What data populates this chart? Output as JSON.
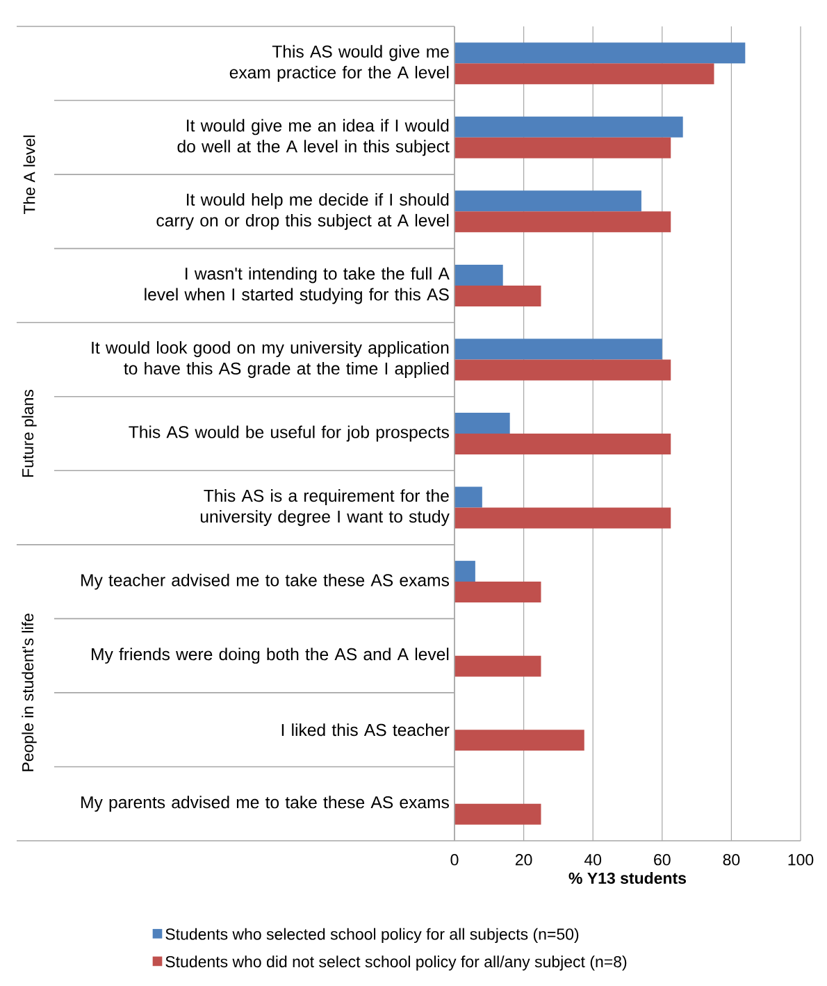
{
  "chart_data": {
    "type": "bar",
    "orientation": "horizontal",
    "xlabel": "% Y13 students",
    "categories": [
      "This AS would give me exam practice for the A level",
      "It would give me an idea if I would do well at the A level in this subject",
      "It would help me decide if I should carry on or drop this subject at A level",
      "I wasn't intending to take the full A level when I started studying for this AS",
      "It would look good on my university application to have this AS grade at the time I applied",
      "This AS would be useful for job prospects",
      "This AS is a requirement for the university degree I want to study",
      "My teacher advised me to take these AS exams",
      "My friends were doing both the AS and A level",
      "I liked this AS teacher",
      "My parents advised me to take these AS exams"
    ],
    "series": [
      {
        "name": "Students who selected school policy for all subjects (n=50)",
        "color": "#4f81bd",
        "values": [
          84,
          66,
          54,
          14,
          60,
          16,
          8,
          6,
          0,
          0,
          0
        ]
      },
      {
        "name": "Students who did not select school policy for all/any subject (n=8)",
        "color": "#c0504d",
        "values": [
          75,
          62.5,
          62.5,
          25,
          62.5,
          62.5,
          62.5,
          25,
          25,
          37.5,
          25
        ]
      }
    ],
    "annotations": [
      "The A level",
      "Future plans",
      "People in student's life"
    ],
    "xlim": [
      0,
      100
    ],
    "xticks": [
      0,
      20,
      40,
      60,
      80,
      100
    ],
    "grid": "x",
    "legend": "bottom"
  }
}
